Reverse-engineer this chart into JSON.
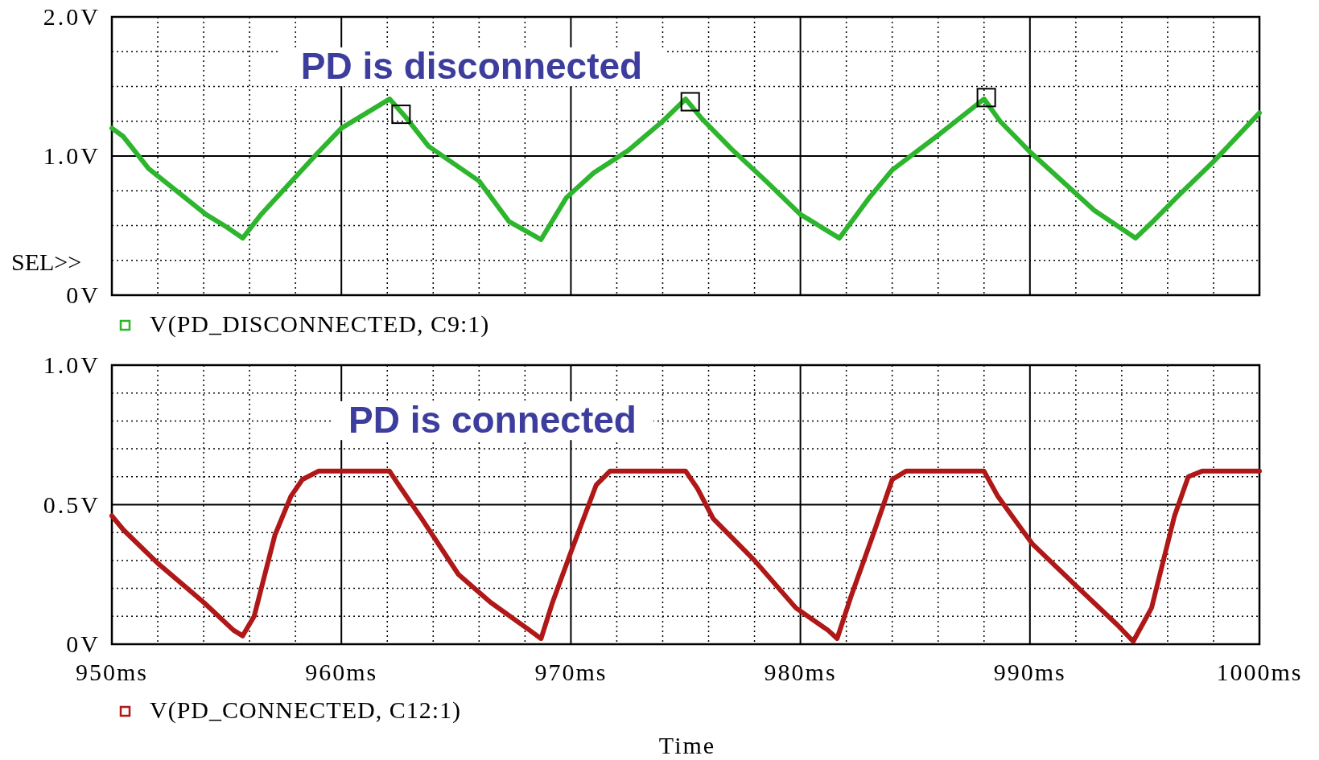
{
  "chart_data": [
    {
      "type": "line",
      "annotations": [
        "SEL>>",
        "PD is disconnected"
      ],
      "xlim": [
        950,
        1000
      ],
      "ylim": [
        0,
        2
      ],
      "xticks": [
        950,
        {
          "value": 952,
          "label": null
        },
        {
          "value": 954,
          "label": null
        },
        {
          "value": 956,
          "label": null
        },
        {
          "value": 958,
          "label": null
        },
        960,
        {
          "value": 962,
          "label": null
        },
        {
          "value": 964,
          "label": null
        },
        {
          "value": 966,
          "label": null
        },
        {
          "value": 968,
          "label": null
        },
        970,
        {
          "value": 972,
          "label": null
        },
        {
          "value": 974,
          "label": null
        },
        {
          "value": 976,
          "label": null
        },
        {
          "value": 978,
          "label": null
        },
        980,
        {
          "value": 982,
          "label": null
        },
        {
          "value": 984,
          "label": null
        },
        {
          "value": 986,
          "label": null
        },
        {
          "value": 988,
          "label": null
        },
        990,
        {
          "value": 992,
          "label": null
        },
        {
          "value": 994,
          "label": null
        },
        {
          "value": 996,
          "label": null
        },
        {
          "value": 998,
          "label": null
        },
        1000
      ],
      "yticks": [
        {
          "value": 0,
          "label": "0V"
        },
        {
          "value": 0.25,
          "label": null
        },
        {
          "value": 0.5,
          "label": null
        },
        {
          "value": 0.75,
          "label": null
        },
        {
          "value": 1,
          "label": "1.0V"
        },
        {
          "value": 1.25,
          "label": null
        },
        {
          "value": 1.5,
          "label": null
        },
        {
          "value": 1.75,
          "label": null
        },
        {
          "value": 2,
          "label": "2.0V"
        }
      ],
      "tick_labels": "y",
      "grid": true,
      "legend": "bottom",
      "series": [
        {
          "name": "V(PD_DISCONNECTED, C9:1)",
          "color": "#2db52d",
          "x": [
            950,
            950.5,
            951.6,
            954.1,
            955,
            955.7,
            956.5,
            958.9,
            960,
            962.1,
            962.8,
            963.8,
            966,
            967.3,
            968.7,
            969.8,
            971,
            972.5,
            974,
            975,
            975.7,
            977,
            978.5,
            980,
            981.7,
            983,
            984,
            986,
            988,
            988.7,
            990,
            991.6,
            992.8,
            994.6,
            995.3,
            996.5,
            998,
            1000
          ],
          "values": [
            1.2,
            1.14,
            0.91,
            0.58,
            0.49,
            0.41,
            0.58,
            1.01,
            1.2,
            1.41,
            1.28,
            1.07,
            0.82,
            0.53,
            0.4,
            0.7,
            0.88,
            1.04,
            1.25,
            1.41,
            1.27,
            1.05,
            0.82,
            0.58,
            0.41,
            0.7,
            0.9,
            1.15,
            1.41,
            1.25,
            1.03,
            0.79,
            0.61,
            0.41,
            0.52,
            0.72,
            0.96,
            1.31
          ]
        },
        {
          "type": "scatter",
          "marker": "square",
          "color": "#000000",
          "x": [
            962.6,
            975.2,
            988.1
          ],
          "values": [
            1.3,
            1.39,
            1.42
          ]
        }
      ]
    },
    {
      "type": "line",
      "annotations": [
        "PD is connected"
      ],
      "xlabel": "Time",
      "xlim": [
        950,
        1000
      ],
      "ylim": [
        0,
        1
      ],
      "xticks": [
        {
          "value": 950,
          "label": "950ms"
        },
        {
          "value": 952,
          "label": null
        },
        {
          "value": 954,
          "label": null
        },
        {
          "value": 956,
          "label": null
        },
        {
          "value": 958,
          "label": null
        },
        {
          "value": 960,
          "label": "960ms"
        },
        {
          "value": 962,
          "label": null
        },
        {
          "value": 964,
          "label": null
        },
        {
          "value": 966,
          "label": null
        },
        {
          "value": 968,
          "label": null
        },
        {
          "value": 970,
          "label": "970ms"
        },
        {
          "value": 972,
          "label": null
        },
        {
          "value": 974,
          "label": null
        },
        {
          "value": 976,
          "label": null
        },
        {
          "value": 978,
          "label": null
        },
        {
          "value": 980,
          "label": "980ms"
        },
        {
          "value": 982,
          "label": null
        },
        {
          "value": 984,
          "label": null
        },
        {
          "value": 986,
          "label": null
        },
        {
          "value": 988,
          "label": null
        },
        {
          "value": 990,
          "label": "990ms"
        },
        {
          "value": 992,
          "label": null
        },
        {
          "value": 994,
          "label": null
        },
        {
          "value": 996,
          "label": null
        },
        {
          "value": 998,
          "label": null
        },
        {
          "value": 1000,
          "label": "1000ms"
        }
      ],
      "yticks": [
        {
          "value": 0,
          "label": "0V"
        },
        {
          "value": 0.1,
          "label": null
        },
        {
          "value": 0.2,
          "label": null
        },
        {
          "value": 0.3,
          "label": null
        },
        {
          "value": 0.4,
          "label": null
        },
        {
          "value": 0.5,
          "label": "0.5V"
        },
        {
          "value": 0.6,
          "label": null
        },
        {
          "value": 0.7,
          "label": null
        },
        {
          "value": 0.8,
          "label": null
        },
        {
          "value": 0.9,
          "label": null
        },
        {
          "value": 1,
          "label": "1.0V"
        }
      ],
      "grid": true,
      "legend": "bottom",
      "series": [
        {
          "name": "V(PD_CONNECTED, C12:1)",
          "color": "#b01818",
          "x": [
            950,
            950.5,
            952,
            954,
            955.3,
            955.7,
            956.2,
            957.1,
            957.8,
            958.3,
            959,
            962.1,
            962.5,
            963.5,
            965.1,
            966.5,
            968.2,
            968.7,
            969.2,
            970,
            971.1,
            971.7,
            975,
            975.5,
            976.2,
            978,
            979.8,
            981.2,
            981.6,
            982.2,
            983.2,
            984,
            984.6,
            988,
            988.6,
            989.3,
            990.1,
            992,
            993.8,
            994.5,
            995.3,
            996.3,
            996.9,
            997.5,
            1000
          ],
          "values": [
            0.46,
            0.41,
            0.29,
            0.15,
            0.05,
            0.03,
            0.1,
            0.39,
            0.53,
            0.59,
            0.62,
            0.62,
            0.57,
            0.45,
            0.25,
            0.15,
            0.05,
            0.02,
            0.15,
            0.33,
            0.57,
            0.62,
            0.62,
            0.56,
            0.45,
            0.3,
            0.13,
            0.05,
            0.02,
            0.17,
            0.4,
            0.59,
            0.62,
            0.62,
            0.53,
            0.45,
            0.36,
            0.21,
            0.07,
            0.01,
            0.13,
            0.46,
            0.6,
            0.62,
            0.62
          ]
        }
      ]
    }
  ]
}
